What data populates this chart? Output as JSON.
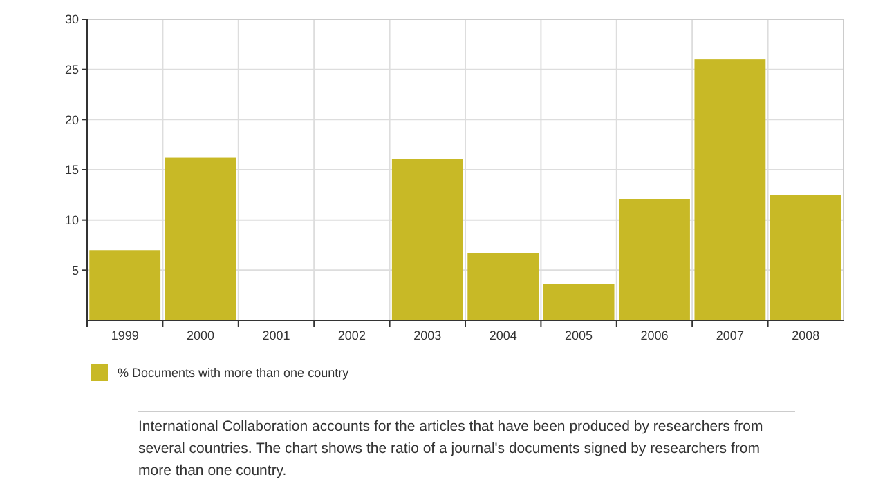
{
  "chart_data": {
    "type": "bar",
    "categories": [
      "1999",
      "2000",
      "2001",
      "2002",
      "2003",
      "2004",
      "2005",
      "2006",
      "2007",
      "2008"
    ],
    "series": [
      {
        "name": "% Documents with more than one country",
        "color": "#c8b926",
        "values": [
          7.0,
          16.2,
          0,
          0,
          16.1,
          6.7,
          3.6,
          12.1,
          26.0,
          12.5
        ]
      }
    ],
    "ylim": [
      0,
      30
    ],
    "yticks": [
      5,
      10,
      15,
      20,
      25,
      30
    ],
    "grid": true,
    "legend": "bottom left",
    "annotations": [
      "International Collaboration accounts for the articles that have been produced by researchers from several countries. The chart shows the ratio of a journal's documents signed by researchers from more than one country."
    ]
  }
}
